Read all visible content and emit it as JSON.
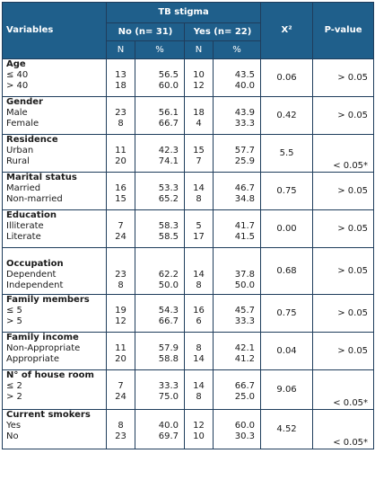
{
  "header": {
    "variables": "Variables",
    "group": "TB stigma",
    "no_group": "No (n= 31)",
    "yes_group": "Yes (n= 22)",
    "chi": "X²",
    "pvalue": "P-value",
    "col_n": "N",
    "col_pct": "%"
  },
  "rows": [
    {
      "title": "Age",
      "top_gap": false,
      "lines": [
        {
          "label": "≤ 40",
          "no_n": "13",
          "no_p": "56.5",
          "yes_n": "10",
          "yes_p": "43.5"
        },
        {
          "label": "> 40",
          "no_n": "18",
          "no_p": "60.0",
          "yes_n": "12",
          "yes_p": "40.0"
        }
      ],
      "chi": "0.06",
      "p": "> 0.05"
    },
    {
      "title": "Gender",
      "top_gap": false,
      "lines": [
        {
          "label": "Male",
          "no_n": "23",
          "no_p": "56.1",
          "yes_n": "18",
          "yes_p": "43.9"
        },
        {
          "label": "Female",
          "no_n": "8",
          "no_p": "66.7",
          "yes_n": "4",
          "yes_p": "33.3"
        }
      ],
      "chi": "0.42",
      "p": "> 0.05"
    },
    {
      "title": "Residence",
      "top_gap": false,
      "lines": [
        {
          "label": "Urban",
          "no_n": "11",
          "no_p": "42.3",
          "yes_n": "15",
          "yes_p": "57.7"
        },
        {
          "label": "Rural",
          "no_n": "20",
          "no_p": "74.1",
          "yes_n": "7",
          "yes_p": "25.9"
        }
      ],
      "chi": "5.5",
      "p": "< 0.05*"
    },
    {
      "title": "Marital status",
      "top_gap": false,
      "lines": [
        {
          "label": "Married",
          "no_n": "16",
          "no_p": "53.3",
          "yes_n": "14",
          "yes_p": "46.7"
        },
        {
          "label": "Non-married",
          "no_n": "15",
          "no_p": "65.2",
          "yes_n": "8",
          "yes_p": "34.8"
        }
      ],
      "chi": "0.75",
      "p": "> 0.05"
    },
    {
      "title": "Education",
      "top_gap": false,
      "lines": [
        {
          "label": "Illiterate",
          "no_n": "7",
          "no_p": "58.3",
          "yes_n": "5",
          "yes_p": "41.7"
        },
        {
          "label": "Literate",
          "no_n": "24",
          "no_p": "58.5",
          "yes_n": "17",
          "yes_p": "41.5"
        }
      ],
      "chi": "0.00",
      "p": "> 0.05"
    },
    {
      "title": "Occupation",
      "top_gap": true,
      "lines": [
        {
          "label": "Dependent",
          "no_n": "23",
          "no_p": "62.2",
          "yes_n": "14",
          "yes_p": "37.8"
        },
        {
          "label": "Independent",
          "no_n": "8",
          "no_p": "50.0",
          "yes_n": "8",
          "yes_p": "50.0"
        }
      ],
      "chi": "0.68",
      "p": "> 0.05"
    },
    {
      "title": "Family members",
      "top_gap": false,
      "lines": [
        {
          "label": "≤ 5",
          "no_n": "19",
          "no_p": "54.3",
          "yes_n": "16",
          "yes_p": "45.7"
        },
        {
          "label": "> 5",
          "no_n": "12",
          "no_p": "66.7",
          "yes_n": "6",
          "yes_p": "33.3"
        }
      ],
      "chi": "0.75",
      "p": "> 0.05"
    },
    {
      "title": "Family income",
      "top_gap": false,
      "lines": [
        {
          "label": "Non-Appropriate",
          "no_n": "11",
          "no_p": "57.9",
          "yes_n": "8",
          "yes_p": "42.1"
        },
        {
          "label": "Appropriate",
          "no_n": "20",
          "no_p": "58.8",
          "yes_n": "14",
          "yes_p": "41.2"
        }
      ],
      "chi": "0.04",
      "p": "> 0.05"
    },
    {
      "title": "N° of house room",
      "top_gap": false,
      "lines": [
        {
          "label": "≤ 2",
          "no_n": "7",
          "no_p": "33.3",
          "yes_n": "14",
          "yes_p": "66.7"
        },
        {
          "label": "> 2",
          "no_n": "24",
          "no_p": "75.0",
          "yes_n": "8",
          "yes_p": "25.0"
        }
      ],
      "chi": "9.06",
      "p": "< 0.05*"
    },
    {
      "title": "Current smokers",
      "top_gap": false,
      "lines": [
        {
          "label": "Yes",
          "no_n": "8",
          "no_p": "40.0",
          "yes_n": "12",
          "yes_p": "60.0"
        },
        {
          "label": "No",
          "no_n": "23",
          "no_p": "69.7",
          "yes_n": "10",
          "yes_p": "30.3"
        }
      ],
      "chi": "4.52",
      "p": "< 0.05*"
    }
  ]
}
